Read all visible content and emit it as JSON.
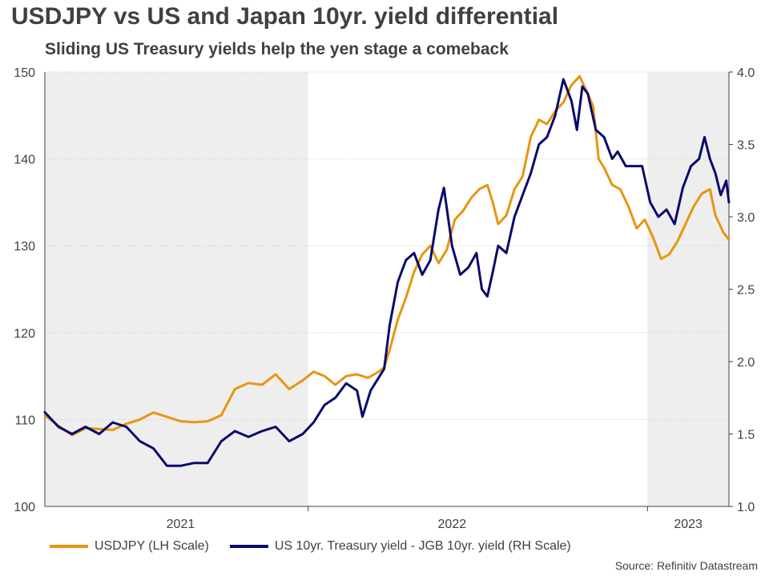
{
  "title": "USDJPY vs US and Japan 10yr. yield differential",
  "subtitle": "Sliding US Treasury yields help the yen stage a comeback",
  "source": "Source: Refinitiv Datastream",
  "colors": {
    "usdjpy": "#e8950f",
    "spread": "#0a0a6e",
    "shade": "#eeeeee",
    "grid": "#d9d9d9",
    "axis": "#404040"
  },
  "chart_data": {
    "type": "line",
    "title": "USDJPY vs US and Japan 10yr. yield differential",
    "subtitle": "Sliding US Treasury yields help the yen stage a comeback",
    "x_range": [
      2020.75,
      2023.27
    ],
    "x_ticks": [
      {
        "label": "2021",
        "x": 2021.25
      },
      {
        "label": "2022",
        "x": 2022.25
      },
      {
        "label": "2023",
        "x": 2023.12
      }
    ],
    "year_dividers": [
      2021.72,
      2022.97
    ],
    "shaded_ranges": [
      [
        2020.75,
        2021.72
      ],
      [
        2022.97,
        2023.27
      ]
    ],
    "y_left": {
      "label": "LH Scale",
      "range": [
        100,
        150
      ],
      "ticks": [
        "100",
        "110",
        "120",
        "130",
        "140",
        "150"
      ]
    },
    "y_right": {
      "label": "RH Scale",
      "range": [
        1.0,
        4.0
      ],
      "ticks": [
        "1.0",
        "1.5",
        "2.0",
        "2.5",
        "3.0",
        "3.5",
        "4.0"
      ]
    },
    "legend_position": "bottom",
    "series": [
      {
        "name": "USDJPY (LH Scale)",
        "axis": "left",
        "color": "#e8950f",
        "points": [
          [
            2020.75,
            110.5
          ],
          [
            2020.8,
            109.3
          ],
          [
            2020.85,
            108.2
          ],
          [
            2020.9,
            109.0
          ],
          [
            2020.95,
            108.9
          ],
          [
            2021.0,
            108.8
          ],
          [
            2021.05,
            109.5
          ],
          [
            2021.1,
            110.0
          ],
          [
            2021.15,
            110.8
          ],
          [
            2021.2,
            110.3
          ],
          [
            2021.25,
            109.8
          ],
          [
            2021.3,
            109.7
          ],
          [
            2021.35,
            109.8
          ],
          [
            2021.4,
            110.5
          ],
          [
            2021.45,
            113.5
          ],
          [
            2021.5,
            114.2
          ],
          [
            2021.55,
            114.0
          ],
          [
            2021.6,
            115.2
          ],
          [
            2021.65,
            113.5
          ],
          [
            2021.7,
            114.5
          ],
          [
            2021.74,
            115.5
          ],
          [
            2021.78,
            115.0
          ],
          [
            2021.82,
            114.0
          ],
          [
            2021.86,
            115.0
          ],
          [
            2021.9,
            115.2
          ],
          [
            2021.94,
            114.8
          ],
          [
            2021.98,
            115.5
          ],
          [
            2022.0,
            116.0
          ],
          [
            2022.02,
            118.0
          ],
          [
            2022.05,
            121.5
          ],
          [
            2022.08,
            124.0
          ],
          [
            2022.11,
            127.0
          ],
          [
            2022.14,
            129.0
          ],
          [
            2022.17,
            130.0
          ],
          [
            2022.2,
            128.0
          ],
          [
            2022.23,
            129.5
          ],
          [
            2022.26,
            133.0
          ],
          [
            2022.29,
            134.0
          ],
          [
            2022.32,
            135.5
          ],
          [
            2022.35,
            136.5
          ],
          [
            2022.38,
            137.0
          ],
          [
            2022.4,
            135.0
          ],
          [
            2022.42,
            132.5
          ],
          [
            2022.45,
            133.5
          ],
          [
            2022.48,
            136.5
          ],
          [
            2022.51,
            138.0
          ],
          [
            2022.54,
            142.5
          ],
          [
            2022.57,
            144.5
          ],
          [
            2022.6,
            144.0
          ],
          [
            2022.63,
            145.5
          ],
          [
            2022.66,
            146.5
          ],
          [
            2022.69,
            148.5
          ],
          [
            2022.72,
            149.5
          ],
          [
            2022.75,
            147.5
          ],
          [
            2022.77,
            146.0
          ],
          [
            2022.79,
            140.0
          ],
          [
            2022.81,
            139.0
          ],
          [
            2022.84,
            137.0
          ],
          [
            2022.87,
            136.5
          ],
          [
            2022.9,
            134.5
          ],
          [
            2022.93,
            132.0
          ],
          [
            2022.96,
            133.0
          ],
          [
            2022.99,
            131.0
          ],
          [
            2023.02,
            128.5
          ],
          [
            2023.05,
            129.0
          ],
          [
            2023.08,
            130.5
          ],
          [
            2023.11,
            132.5
          ],
          [
            2023.14,
            134.5
          ],
          [
            2023.17,
            136.0
          ],
          [
            2023.2,
            136.5
          ],
          [
            2023.22,
            133.5
          ],
          [
            2023.25,
            131.5
          ],
          [
            2023.27,
            130.7
          ]
        ]
      },
      {
        "name": "US 10yr. Treasury yield - JGB 10yr. yield (RH Scale)",
        "axis": "right",
        "color": "#0a0a6e",
        "points": [
          [
            2020.75,
            1.65
          ],
          [
            2020.8,
            1.55
          ],
          [
            2020.85,
            1.5
          ],
          [
            2020.9,
            1.55
          ],
          [
            2020.95,
            1.5
          ],
          [
            2021.0,
            1.58
          ],
          [
            2021.05,
            1.55
          ],
          [
            2021.1,
            1.45
          ],
          [
            2021.15,
            1.4
          ],
          [
            2021.2,
            1.28
          ],
          [
            2021.25,
            1.28
          ],
          [
            2021.3,
            1.3
          ],
          [
            2021.35,
            1.3
          ],
          [
            2021.4,
            1.45
          ],
          [
            2021.45,
            1.52
          ],
          [
            2021.5,
            1.48
          ],
          [
            2021.55,
            1.52
          ],
          [
            2021.6,
            1.55
          ],
          [
            2021.65,
            1.45
          ],
          [
            2021.7,
            1.5
          ],
          [
            2021.74,
            1.58
          ],
          [
            2021.78,
            1.7
          ],
          [
            2021.82,
            1.75
          ],
          [
            2021.86,
            1.85
          ],
          [
            2021.9,
            1.8
          ],
          [
            2021.92,
            1.62
          ],
          [
            2021.95,
            1.8
          ],
          [
            2022.0,
            1.95
          ],
          [
            2022.02,
            2.25
          ],
          [
            2022.05,
            2.55
          ],
          [
            2022.08,
            2.7
          ],
          [
            2022.11,
            2.75
          ],
          [
            2022.14,
            2.6
          ],
          [
            2022.17,
            2.7
          ],
          [
            2022.2,
            3.05
          ],
          [
            2022.22,
            3.2
          ],
          [
            2022.25,
            2.8
          ],
          [
            2022.28,
            2.6
          ],
          [
            2022.31,
            2.65
          ],
          [
            2022.34,
            2.75
          ],
          [
            2022.36,
            2.5
          ],
          [
            2022.38,
            2.45
          ],
          [
            2022.4,
            2.62
          ],
          [
            2022.42,
            2.8
          ],
          [
            2022.45,
            2.75
          ],
          [
            2022.48,
            3.0
          ],
          [
            2022.51,
            3.15
          ],
          [
            2022.54,
            3.3
          ],
          [
            2022.57,
            3.5
          ],
          [
            2022.6,
            3.55
          ],
          [
            2022.63,
            3.7
          ],
          [
            2022.66,
            3.95
          ],
          [
            2022.69,
            3.8
          ],
          [
            2022.71,
            3.6
          ],
          [
            2022.73,
            3.9
          ],
          [
            2022.75,
            3.85
          ],
          [
            2022.78,
            3.6
          ],
          [
            2022.81,
            3.55
          ],
          [
            2022.84,
            3.4
          ],
          [
            2022.86,
            3.45
          ],
          [
            2022.89,
            3.35
          ],
          [
            2022.92,
            3.35
          ],
          [
            2022.95,
            3.35
          ],
          [
            2022.98,
            3.1
          ],
          [
            2023.01,
            3.0
          ],
          [
            2023.04,
            3.05
          ],
          [
            2023.07,
            2.95
          ],
          [
            2023.1,
            3.2
          ],
          [
            2023.13,
            3.35
          ],
          [
            2023.16,
            3.4
          ],
          [
            2023.18,
            3.55
          ],
          [
            2023.2,
            3.4
          ],
          [
            2023.22,
            3.3
          ],
          [
            2023.24,
            3.15
          ],
          [
            2023.26,
            3.25
          ],
          [
            2023.27,
            3.1
          ]
        ]
      }
    ]
  }
}
